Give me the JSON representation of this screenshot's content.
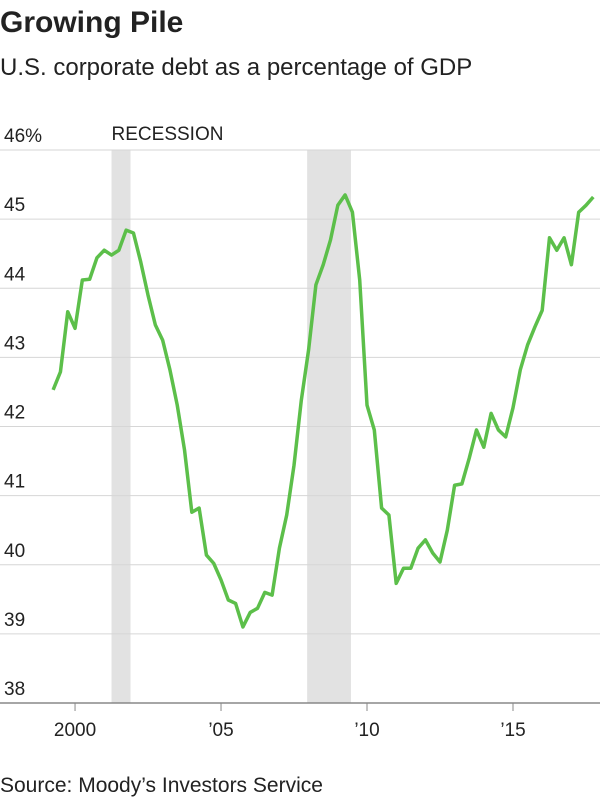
{
  "chart_data": {
    "type": "line",
    "title": "Growing Pile",
    "subtitle": "U.S. corporate debt as a percentage of GDP",
    "source": "Source: Moody’s Investors Service",
    "recession_label": "RECESSION",
    "recessions": [
      [
        2001.25,
        2001.9
      ],
      [
        2007.95,
        2009.45
      ]
    ],
    "x": [
      1999.25,
      1999.5,
      1999.75,
      2000,
      2000.25,
      2000.5,
      2000.75,
      2001,
      2001.25,
      2001.5,
      2001.75,
      2002,
      2002.25,
      2002.5,
      2002.75,
      2003,
      2003.25,
      2003.5,
      2003.75,
      2004,
      2004.25,
      2004.5,
      2004.75,
      2005,
      2005.25,
      2005.5,
      2005.75,
      2006,
      2006.25,
      2006.5,
      2006.75,
      2007,
      2007.25,
      2007.5,
      2007.75,
      2008,
      2008.25,
      2008.5,
      2008.75,
      2009,
      2009.25,
      2009.5,
      2009.75,
      2010,
      2010.25,
      2010.5,
      2010.75,
      2011,
      2011.25,
      2011.5,
      2011.75,
      2012,
      2012.25,
      2012.5,
      2012.75,
      2013,
      2013.25,
      2013.5,
      2013.75,
      2014,
      2014.25,
      2014.5,
      2014.75,
      2015,
      2015.25,
      2015.5,
      2015.75,
      2016,
      2016.25,
      2016.5,
      2016.75,
      2017,
      2017.25,
      2017.5,
      2017.75
    ],
    "series": [
      {
        "color": "#5cbf4a",
        "values": [
          42.53,
          42.79,
          43.66,
          43.42,
          44.12,
          44.13,
          44.44,
          44.55,
          44.48,
          44.55,
          44.84,
          44.8,
          44.38,
          43.9,
          43.47,
          43.25,
          42.82,
          42.31,
          41.66,
          40.76,
          40.82,
          40.14,
          40.02,
          39.78,
          39.49,
          39.44,
          39.1,
          39.31,
          39.37,
          39.6,
          39.56,
          40.24,
          40.72,
          41.44,
          42.38,
          43.11,
          44.05,
          44.34,
          44.7,
          45.2,
          45.35,
          45.1,
          44.12,
          42.31,
          41.95,
          40.82,
          40.72,
          39.73,
          39.95,
          39.95,
          40.24,
          40.36,
          40.17,
          40.04,
          40.5,
          41.15,
          41.17,
          41.54,
          41.95,
          41.7,
          42.19,
          41.95,
          41.85,
          42.27,
          42.82,
          43.18,
          43.44,
          43.68,
          44.73,
          44.55,
          44.73,
          44.34,
          45.1,
          45.2,
          45.32
        ]
      }
    ],
    "xlim": [
      1997.43,
      2017.98
    ],
    "ylim": [
      38,
      46
    ],
    "xticks": [
      2000,
      {
        "value": 2005,
        "label": "’05"
      },
      {
        "value": 2010,
        "label": "’10"
      },
      {
        "value": 2015,
        "label": "’15"
      }
    ],
    "yticks": [
      38,
      39,
      40,
      41,
      42,
      43,
      44,
      45,
      {
        "value": 46,
        "label": "46%"
      }
    ],
    "grid": true
  }
}
